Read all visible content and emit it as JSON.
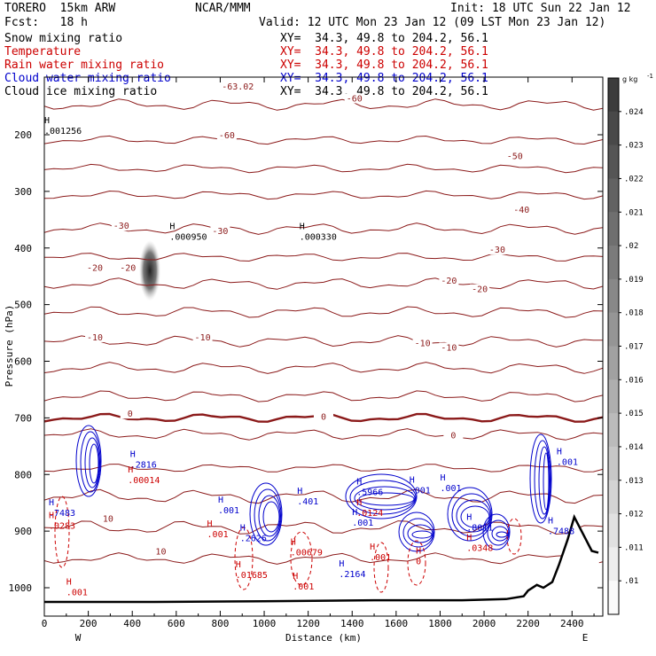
{
  "header": {
    "model": "TORERO  15km ARW",
    "center": "NCAR/MMM",
    "init": "Init: 18 UTC Sun 22 Jan 12",
    "fcst": "Fcst:   18 h",
    "valid": "Valid: 12 UTC Mon 23 Jan 12 (09 LST Mon 23 Jan 12)"
  },
  "fields": [
    {
      "name": "Snow mixing ratio",
      "xy": "XY=  34.3, 49.8 to 204.2, 56.1",
      "color": "#000000"
    },
    {
      "name": "Temperature",
      "xy": "XY=  34.3, 49.8 to 204.2, 56.1",
      "color": "#cc0000"
    },
    {
      "name": "Rain water mixing ratio",
      "xy": "XY=  34.3, 49.8 to 204.2, 56.1",
      "color": "#cc0000"
    },
    {
      "name": "Cloud water mixing ratio",
      "xy": "XY=  34.3, 49.8 to 204.2, 56.1",
      "color": "#0000cc"
    },
    {
      "name": "Cloud ice mixing ratio",
      "xy": "XY=  34.3, 49.8 to 204.2, 56.1",
      "color": "#000000"
    }
  ],
  "colors": {
    "temperature": "#8b1a1a",
    "rain": "#cc0000",
    "cloud_water": "#0000cc",
    "snow": "#333333"
  },
  "chart_data": {
    "type": "contour",
    "xlabel": "Distance (km)",
    "ylabel": "Pressure (hPa)",
    "xlim": [
      0,
      2540
    ],
    "ylim": [
      1040,
      100
    ],
    "x_ticks": [
      0,
      200,
      400,
      600,
      800,
      1000,
      1200,
      1400,
      1600,
      1800,
      2000,
      2200,
      2400
    ],
    "y_ticks": [
      200,
      300,
      400,
      500,
      600,
      700,
      800,
      900,
      1000
    ],
    "x_end_labels": {
      "left": "W",
      "right": "E"
    },
    "colorbar": {
      "unit": "g kg",
      "unit_exp": "-1",
      "ticks": [
        ".024",
        ".023",
        ".022",
        ".021",
        ".02",
        ".019",
        ".018",
        ".017",
        ".016",
        ".015",
        ".014",
        ".013",
        ".012",
        ".011",
        ".01"
      ]
    },
    "temperature_labels": [
      {
        "text": "-63.02",
        "x": 880,
        "p": 117
      },
      {
        "text": "-60",
        "x": 1410,
        "p": 138
      },
      {
        "text": "-60",
        "x": 830,
        "p": 203
      },
      {
        "text": "-50",
        "x": 2140,
        "p": 240
      },
      {
        "text": "-40",
        "x": 2170,
        "p": 335
      },
      {
        "text": "-30",
        "x": 350,
        "p": 363
      },
      {
        "text": "-30",
        "x": 800,
        "p": 372
      },
      {
        "text": "-30",
        "x": 2060,
        "p": 405
      },
      {
        "text": "-20",
        "x": 230,
        "p": 437
      },
      {
        "text": "-20",
        "x": 380,
        "p": 437
      },
      {
        "text": "-20",
        "x": 1840,
        "p": 460
      },
      {
        "text": "-20",
        "x": 1980,
        "p": 475
      },
      {
        "text": "-10",
        "x": 230,
        "p": 560
      },
      {
        "text": "-10",
        "x": 720,
        "p": 560
      },
      {
        "text": "-10",
        "x": 1720,
        "p": 570
      },
      {
        "text": "-10",
        "x": 1840,
        "p": 578
      },
      {
        "text": "0",
        "x": 390,
        "p": 695
      },
      {
        "text": "0",
        "x": 1270,
        "p": 700
      },
      {
        "text": "0",
        "x": 1860,
        "p": 733
      },
      {
        "text": "10",
        "x": 290,
        "p": 880
      },
      {
        "text": "10",
        "x": 530,
        "p": 938
      }
    ],
    "extrema": [
      {
        "text": ".001256",
        "x": 0,
        "p": 195,
        "color": "#000000"
      },
      {
        "text": ".000950",
        "x": 570,
        "p": 382,
        "color": "#000000"
      },
      {
        "text": ".000330",
        "x": 1160,
        "p": 382,
        "color": "#000000"
      },
      {
        "text": ".2816",
        "x": 390,
        "p": 785,
        "color": "#0000cc"
      },
      {
        "text": ".00014",
        "x": 380,
        "p": 812,
        "color": "#cc0000"
      },
      {
        "text": ".7483",
        "x": 20,
        "p": 870,
        "color": "#0000cc"
      },
      {
        "text": ".0283",
        "x": 20,
        "p": 893,
        "color": "#cc0000"
      },
      {
        "text": ".001",
        "x": 790,
        "p": 865,
        "color": "#0000cc"
      },
      {
        "text": ".401",
        "x": 1150,
        "p": 850,
        "color": "#0000cc"
      },
      {
        "text": ".5966",
        "x": 1420,
        "p": 833,
        "color": "#0000cc"
      },
      {
        "text": ".001",
        "x": 1660,
        "p": 830,
        "color": "#0000cc"
      },
      {
        "text": ".001",
        "x": 1800,
        "p": 826,
        "color": "#0000cc"
      },
      {
        "text": ".001",
        "x": 2330,
        "p": 780,
        "color": "#0000cc"
      },
      {
        "text": ".0124",
        "x": 1420,
        "p": 870,
        "color": "#cc0000"
      },
      {
        "text": ".001",
        "x": 1400,
        "p": 887,
        "color": "#0000cc"
      },
      {
        "text": ".8011",
        "x": 1920,
        "p": 896,
        "color": "#0000cc"
      },
      {
        "text": ".7488",
        "x": 2290,
        "p": 902,
        "color": "#0000cc"
      },
      {
        "text": ".001",
        "x": 740,
        "p": 908,
        "color": "#cc0000"
      },
      {
        "text": ".2626",
        "x": 890,
        "p": 915,
        "color": "#0000cc"
      },
      {
        "text": ".00679",
        "x": 1120,
        "p": 940,
        "color": "#cc0000"
      },
      {
        "text": ".0348",
        "x": 1920,
        "p": 932,
        "color": "#cc0000"
      },
      {
        "text": ".001",
        "x": 1480,
        "p": 948,
        "color": "#cc0000"
      },
      {
        "text": "0",
        "x": 1690,
        "p": 955,
        "color": "#cc0000"
      },
      {
        "text": ".2164",
        "x": 1340,
        "p": 978,
        "color": "#0000cc"
      },
      {
        "text": ".01685",
        "x": 870,
        "p": 980,
        "color": "#cc0000"
      },
      {
        "text": ".001",
        "x": 1130,
        "p": 1000,
        "color": "#cc0000"
      },
      {
        "text": ".001",
        "x": 100,
        "p": 1010,
        "color": "#cc0000"
      }
    ],
    "terrain_pressure": [
      [
        0,
        1025
      ],
      [
        500,
        1025
      ],
      [
        1000,
        1024
      ],
      [
        1500,
        1022
      ],
      [
        1900,
        1022
      ],
      [
        2100,
        1020
      ],
      [
        2180,
        1015
      ],
      [
        2200,
        1005
      ],
      [
        2240,
        995
      ],
      [
        2270,
        1000
      ],
      [
        2310,
        990
      ],
      [
        2340,
        960
      ],
      [
        2380,
        915
      ],
      [
        2410,
        875
      ],
      [
        2450,
        905
      ],
      [
        2490,
        935
      ],
      [
        2520,
        938
      ]
    ],
    "snow_max": {
      "x": 480,
      "p": 440
    }
  }
}
